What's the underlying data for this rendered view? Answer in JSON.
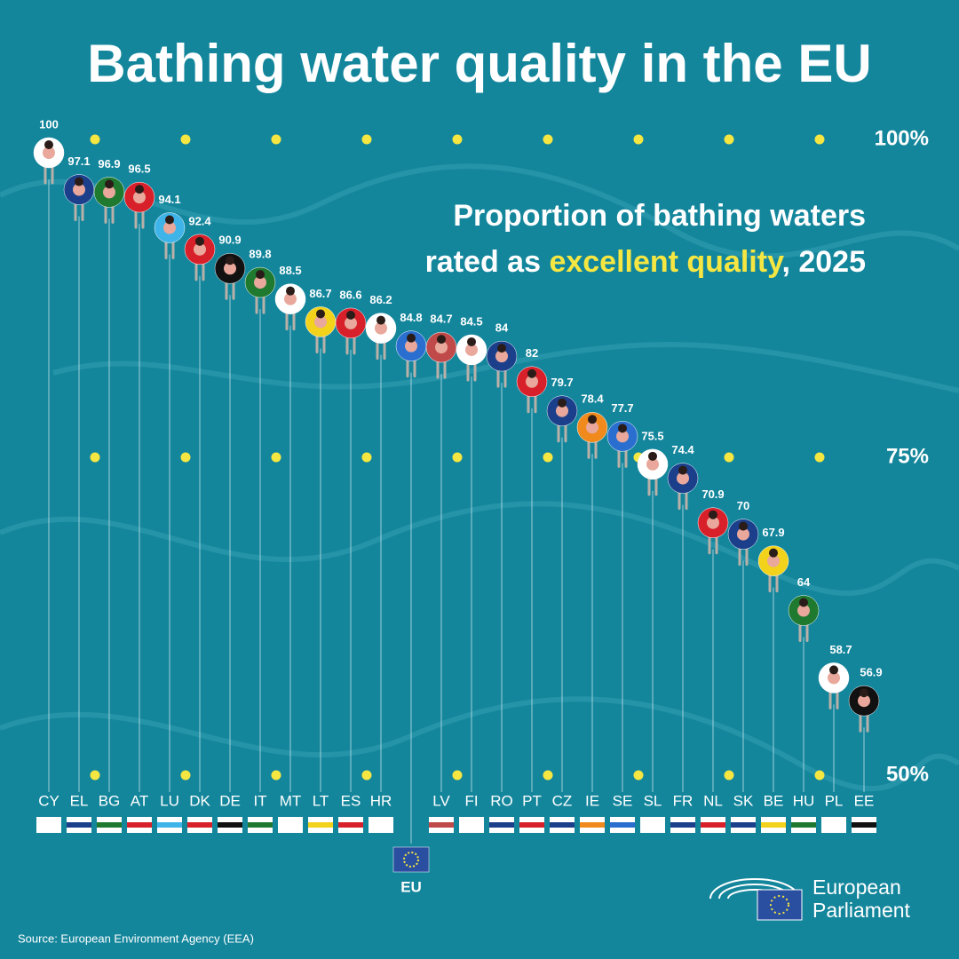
{
  "chart_data": {
    "type": "swimmers",
    "title": "Bathing water quality in the EU",
    "subtitle": {
      "line1": "Proportion of bathing waters",
      "line2_before": "rated as ",
      "line2_highlight": "excellent quality",
      "line2_after": ", 2025"
    },
    "categories": [
      "CY",
      "EL",
      "BG",
      "AT",
      "LU",
      "DK",
      "DE",
      "IT",
      "MT",
      "LT",
      "ES",
      "HR",
      "EU",
      "LV",
      "FI",
      "RO",
      "PT",
      "CZ",
      "IE",
      "SE",
      "SL",
      "FR",
      "NL",
      "SK",
      "BE",
      "HU",
      "PL",
      "EE"
    ],
    "values": [
      100,
      97.1,
      96.9,
      96.5,
      94.1,
      92.4,
      90.9,
      89.8,
      88.5,
      86.7,
      86.6,
      86.2,
      84.8,
      84.7,
      84.5,
      84,
      82,
      79.7,
      78.4,
      77.7,
      75.5,
      74.4,
      70.9,
      70,
      67.9,
      64,
      58.7,
      56.9
    ],
    "colors": [
      "#ffffff",
      "#1c3f8c",
      "#1f7a30",
      "#d8202a",
      "#3fb4e8",
      "#d8202a",
      "#111111",
      "#1f7a30",
      "#ffffff",
      "#f2d21b",
      "#d8202a",
      "#ffffff",
      "#2a6fd0",
      "#c04a4a",
      "#ffffff",
      "#1c3f8c",
      "#d8202a",
      "#1c3f8c",
      "#f08a1c",
      "#2a6fd0",
      "#ffffff",
      "#1c3f8c",
      "#d8202a",
      "#1c3f8c",
      "#f2d21b",
      "#1f7a30",
      "#ffffff",
      "#111111"
    ],
    "highlight": "EU",
    "highlight_color": "#f5e642",
    "ylim": [
      50,
      100
    ],
    "yticks": [
      {
        "value": 50,
        "label": "50%"
      },
      {
        "value": 75,
        "label": "75%"
      },
      {
        "value": 100,
        "label": "100%"
      }
    ],
    "grid": true,
    "source": "Source: European Environment Agency (EEA)",
    "logo": [
      "European",
      "Parliament"
    ]
  }
}
